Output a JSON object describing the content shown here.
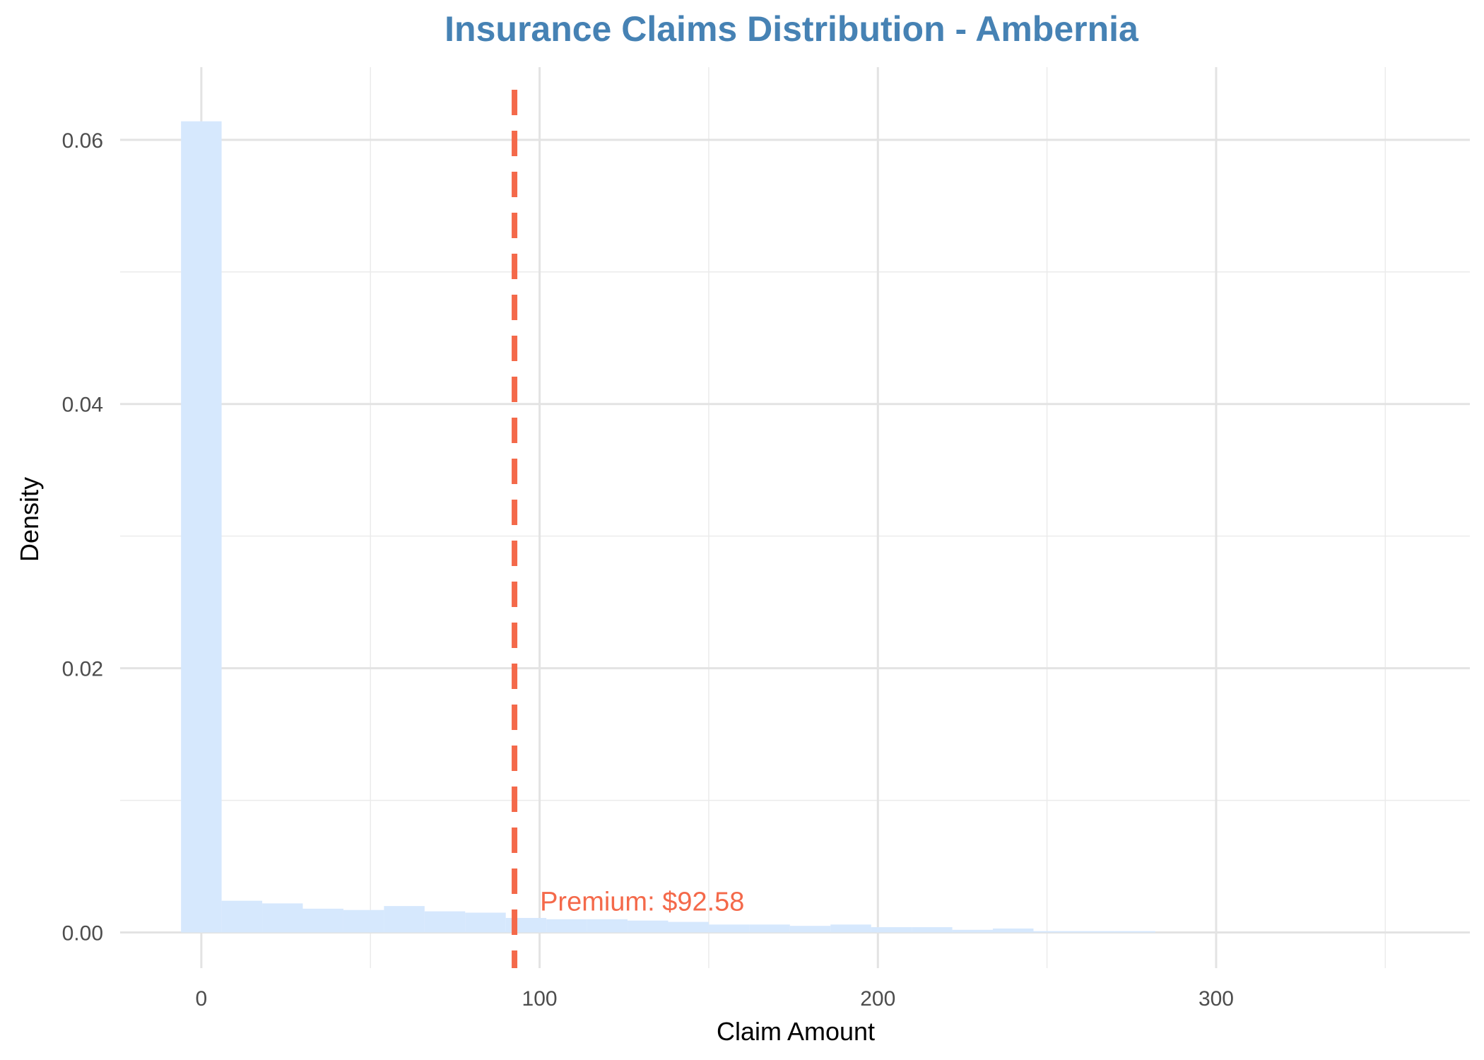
{
  "chart_data": {
    "type": "bar",
    "subtype": "histogram",
    "title": "Insurance Claims Distribution - Ambernia",
    "xlabel": "Claim Amount",
    "ylabel": "Density",
    "xlim": [
      -24,
      375
    ],
    "ylim": [
      -0.0027,
      0.0655
    ],
    "x_ticks": [
      0,
      100,
      200,
      300
    ],
    "y_ticks": [
      0.0,
      0.02,
      0.04,
      0.06
    ],
    "y_tick_labels": [
      "0.00",
      "0.02",
      "0.04",
      "0.06"
    ],
    "x_minor_gridlines": [
      50,
      150,
      250,
      350
    ],
    "y_minor_gridlines": [
      0.01,
      0.03,
      0.05
    ],
    "grid": true,
    "bar_color": "#d6e8fd",
    "bins": [
      {
        "x0": -6,
        "x1": 6,
        "density": 0.0614
      },
      {
        "x0": 6,
        "x1": 18,
        "density": 0.0024
      },
      {
        "x0": 18,
        "x1": 30,
        "density": 0.0022
      },
      {
        "x0": 30,
        "x1": 42,
        "density": 0.0018
      },
      {
        "x0": 42,
        "x1": 54,
        "density": 0.0017
      },
      {
        "x0": 54,
        "x1": 66,
        "density": 0.002
      },
      {
        "x0": 66,
        "x1": 78,
        "density": 0.0016
      },
      {
        "x0": 78,
        "x1": 90,
        "density": 0.0015
      },
      {
        "x0": 90,
        "x1": 102,
        "density": 0.0011
      },
      {
        "x0": 102,
        "x1": 114,
        "density": 0.001
      },
      {
        "x0": 114,
        "x1": 126,
        "density": 0.001
      },
      {
        "x0": 126,
        "x1": 138,
        "density": 0.0009
      },
      {
        "x0": 138,
        "x1": 150,
        "density": 0.0008
      },
      {
        "x0": 150,
        "x1": 162,
        "density": 0.0006
      },
      {
        "x0": 162,
        "x1": 174,
        "density": 0.0006
      },
      {
        "x0": 174,
        "x1": 186,
        "density": 0.0005
      },
      {
        "x0": 186,
        "x1": 198,
        "density": 0.0006
      },
      {
        "x0": 198,
        "x1": 210,
        "density": 0.0004
      },
      {
        "x0": 210,
        "x1": 222,
        "density": 0.0004
      },
      {
        "x0": 222,
        "x1": 234,
        "density": 0.0002
      },
      {
        "x0": 234,
        "x1": 246,
        "density": 0.0003
      },
      {
        "x0": 246,
        "x1": 258,
        "density": 0.0001
      },
      {
        "x0": 258,
        "x1": 270,
        "density": 0.0001
      },
      {
        "x0": 270,
        "x1": 282,
        "density": 0.0001
      },
      {
        "x0": 282,
        "x1": 294,
        "density": 0.0
      },
      {
        "x0": 294,
        "x1": 306,
        "density": 0.0
      },
      {
        "x0": 306,
        "x1": 318,
        "density": 0.0
      },
      {
        "x0": 318,
        "x1": 330,
        "density": 0.0
      },
      {
        "x0": 330,
        "x1": 342,
        "density": 0.0
      },
      {
        "x0": 342,
        "x1": 354,
        "density": 0.0
      }
    ],
    "reference_line": {
      "x": 92.58,
      "label": "Premium: $92.58",
      "color": "#f4694a",
      "style": "dashed"
    }
  }
}
